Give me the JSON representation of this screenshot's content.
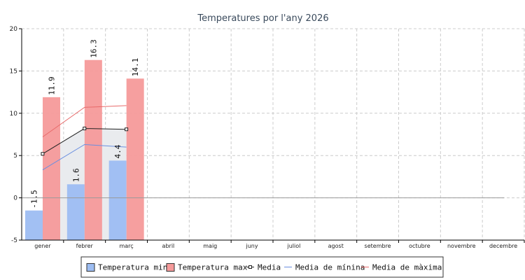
{
  "chart_data": {
    "type": "bar",
    "title": "Temperatures por l'any 2026",
    "xlabel": "",
    "ylabel": "",
    "ylim": [
      -5,
      20
    ],
    "yticks": [
      -5,
      0,
      5,
      10,
      15,
      20
    ],
    "grid": true,
    "legend_position": "bottom",
    "categories": [
      "gener",
      "febrer",
      "març",
      "abril",
      "maig",
      "juny",
      "juliol",
      "agost",
      "setembre",
      "octubre",
      "novembre",
      "decembre"
    ],
    "series": [
      {
        "name": "Temperatura min",
        "kind": "bar",
        "color": "#9dbdf2",
        "values": [
          -1.5,
          1.6,
          4.4,
          null,
          null,
          null,
          null,
          null,
          null,
          null,
          null,
          null
        ],
        "labels": [
          "-1.5",
          "1.6",
          "4.4"
        ]
      },
      {
        "name": "Temperatura max",
        "kind": "bar",
        "color": "#f59a9a",
        "values": [
          11.9,
          16.3,
          14.1,
          null,
          null,
          null,
          null,
          null,
          null,
          null,
          null,
          null
        ],
        "labels": [
          "11.9",
          "16.3",
          "14.1"
        ]
      },
      {
        "name": "Media",
        "kind": "line-marker",
        "color": "#222222",
        "values": [
          5.2,
          8.2,
          8.1,
          null,
          null,
          null,
          null,
          null,
          null,
          null,
          null,
          null
        ]
      },
      {
        "name": "Media de mínina",
        "kind": "line",
        "color": "#6a8fe0",
        "values": [
          3.3,
          6.3,
          6.0,
          null,
          null,
          null,
          null,
          null,
          null,
          null,
          null,
          null
        ]
      },
      {
        "name": "Media de màxima",
        "kind": "line",
        "color": "#e86a6a",
        "values": [
          7.2,
          10.7,
          10.9,
          null,
          null,
          null,
          null,
          null,
          null,
          null,
          null,
          null
        ]
      }
    ],
    "band_color": "#e9ebee"
  }
}
